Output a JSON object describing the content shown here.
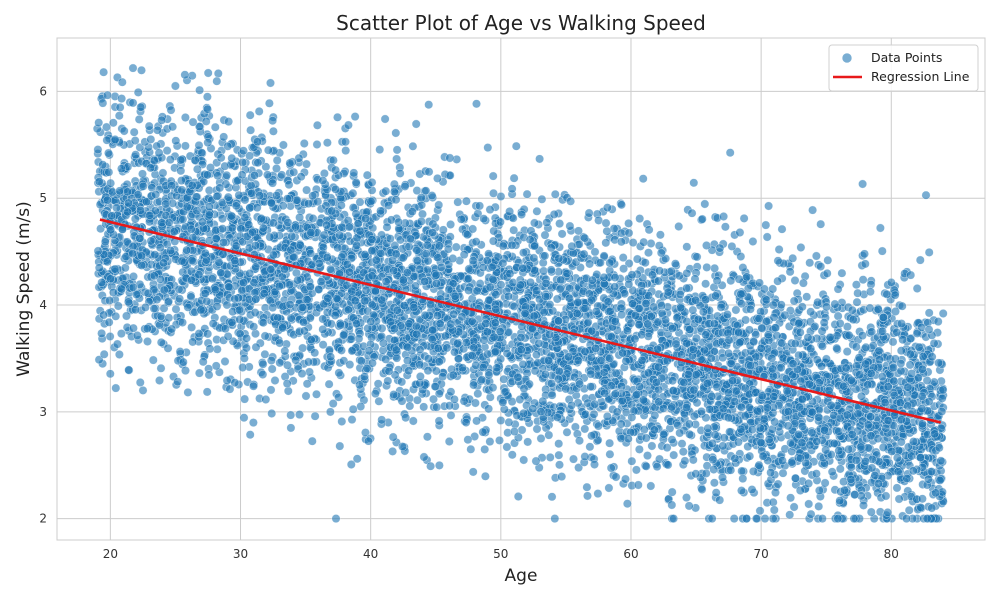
{
  "chart_data": {
    "type": "scatter",
    "title": "Scatter Plot of Age vs Walking Speed",
    "xlabel": "Age",
    "ylabel": "Walking Speed (m/s)",
    "xlim": [
      15.9,
      87.2
    ],
    "ylim": [
      1.8,
      6.5
    ],
    "xticks": [
      20,
      30,
      40,
      50,
      60,
      70,
      80
    ],
    "yticks": [
      2,
      3,
      4,
      5,
      6
    ],
    "grid": true,
    "legend_position": "top-right",
    "series": [
      {
        "name": "Data Points",
        "type": "scatter",
        "color": "#1f77b4",
        "age_range": [
          19,
          84
        ],
        "point_count": 10000,
        "floor": 2.0,
        "note": "dense cloud following the trend, spread roughly ±0.9 m/s, values clipped at 2.0"
      },
      {
        "name": "Regression Line",
        "type": "line",
        "color": "#e8191a",
        "x": [
          19.2,
          83.8
        ],
        "y": [
          4.8,
          2.9
        ]
      }
    ]
  }
}
